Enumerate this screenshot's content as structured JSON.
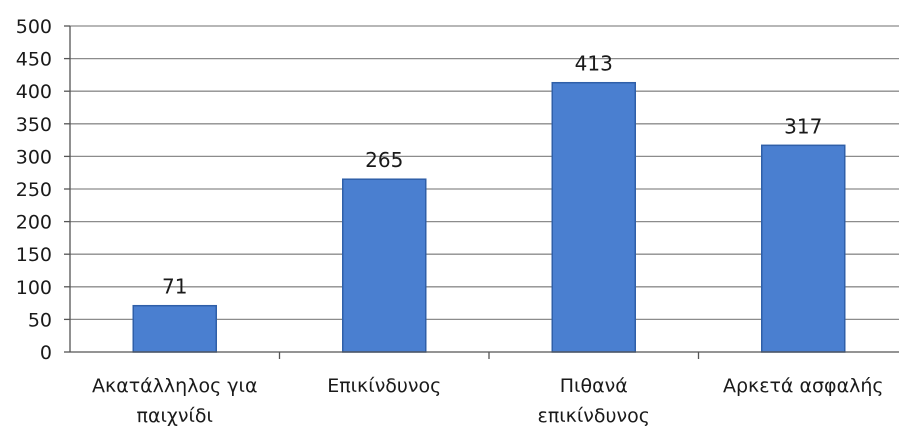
{
  "chart_data": {
    "type": "bar",
    "categories": [
      [
        "Ακατάλληλος για",
        "παιχνίδι"
      ],
      [
        "Επικίνδυνος"
      ],
      [
        "Πιθανά",
        "επικίνδυνος"
      ],
      [
        "Αρκετά ασφαλής"
      ]
    ],
    "values": [
      71,
      265,
      413,
      317
    ],
    "ylim": [
      0,
      500
    ],
    "yticks": [
      0,
      50,
      100,
      150,
      200,
      250,
      300,
      350,
      400,
      450,
      500
    ],
    "grid": true,
    "legend": "none",
    "bar_color": "#4a7fd0",
    "bar_edge_color": "#2f5fa8",
    "grid_color": "#8c8c8c"
  }
}
